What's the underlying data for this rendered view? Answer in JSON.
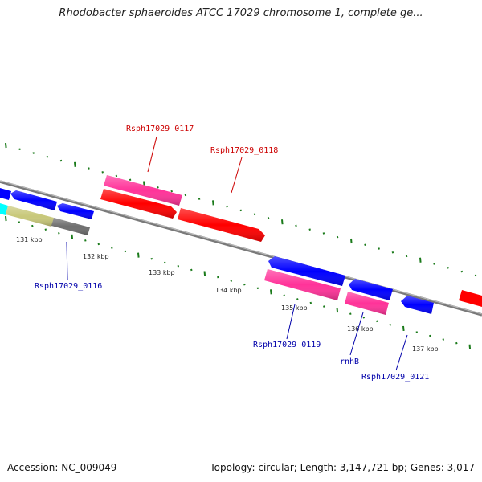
{
  "title": "Rhodobacter sphaeroides ATCC 17029 chromosome 1, complete ge...",
  "footer": {
    "accession": "Accession: NC_009049",
    "summary": "Topology: circular; Length: 3,147,721 bp; Genes: 3,017"
  },
  "colors": {
    "backbone": "#7a7a7a",
    "tick": "#1a7a1a",
    "label_forward": "#cc0000",
    "label_reverse": "#0000aa",
    "red": "#ff0000",
    "blue": "#0000ff",
    "pink": "#ff3399",
    "khaki": "#c8c87a",
    "gray": "#6e6e6e",
    "cyan": "#00ffff"
  },
  "scale_labels": [
    "131 kbp",
    "132 kbp",
    "133 kbp",
    "134 kbp",
    "135 kbp",
    "136 kbp",
    "137 kbp"
  ],
  "gene_labels": [
    {
      "text": "Rsph17029_0117",
      "strand": "forward"
    },
    {
      "text": "Rsph17029_0118",
      "strand": "forward"
    },
    {
      "text": "Rsph17029_0116",
      "strand": "reverse"
    },
    {
      "text": "Rsph17029_0119",
      "strand": "reverse"
    },
    {
      "text": "rnhB",
      "strand": "reverse"
    },
    {
      "text": "Rsph17029_0121",
      "strand": "reverse"
    }
  ]
}
